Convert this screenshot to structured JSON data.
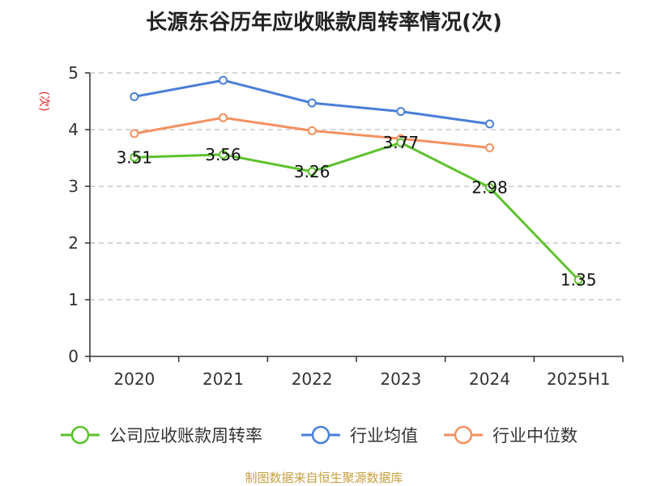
{
  "chart_data": {
    "type": "line",
    "title": "长源东谷历年应收账款周转率情况(次)",
    "ylabel": "(次)",
    "xlabel": "",
    "categories": [
      "2020",
      "2021",
      "2022",
      "2023",
      "2024",
      "2025H1"
    ],
    "ylim": [
      0,
      5
    ],
    "yticks": [
      "0",
      "1",
      "2",
      "3",
      "4",
      "5"
    ],
    "grid": true,
    "legend_position": "bottom",
    "series": [
      {
        "name": "公司应收账款周转率",
        "color": "#5dc22d",
        "values": [
          3.51,
          3.56,
          3.26,
          3.77,
          2.98,
          1.35
        ],
        "labels": [
          "3.51",
          "3.56",
          "3.26",
          "3.77",
          "2.98",
          "1.35"
        ]
      },
      {
        "name": "行业均值",
        "color": "#4a7fd8",
        "values": [
          4.58,
          4.87,
          4.47,
          4.32,
          4.1,
          null
        ]
      },
      {
        "name": "行业中位数",
        "color": "#f59060",
        "values": [
          3.93,
          4.21,
          3.98,
          3.84,
          3.68,
          null
        ]
      }
    ],
    "source": "制图数据来自恒生聚源数据库"
  }
}
